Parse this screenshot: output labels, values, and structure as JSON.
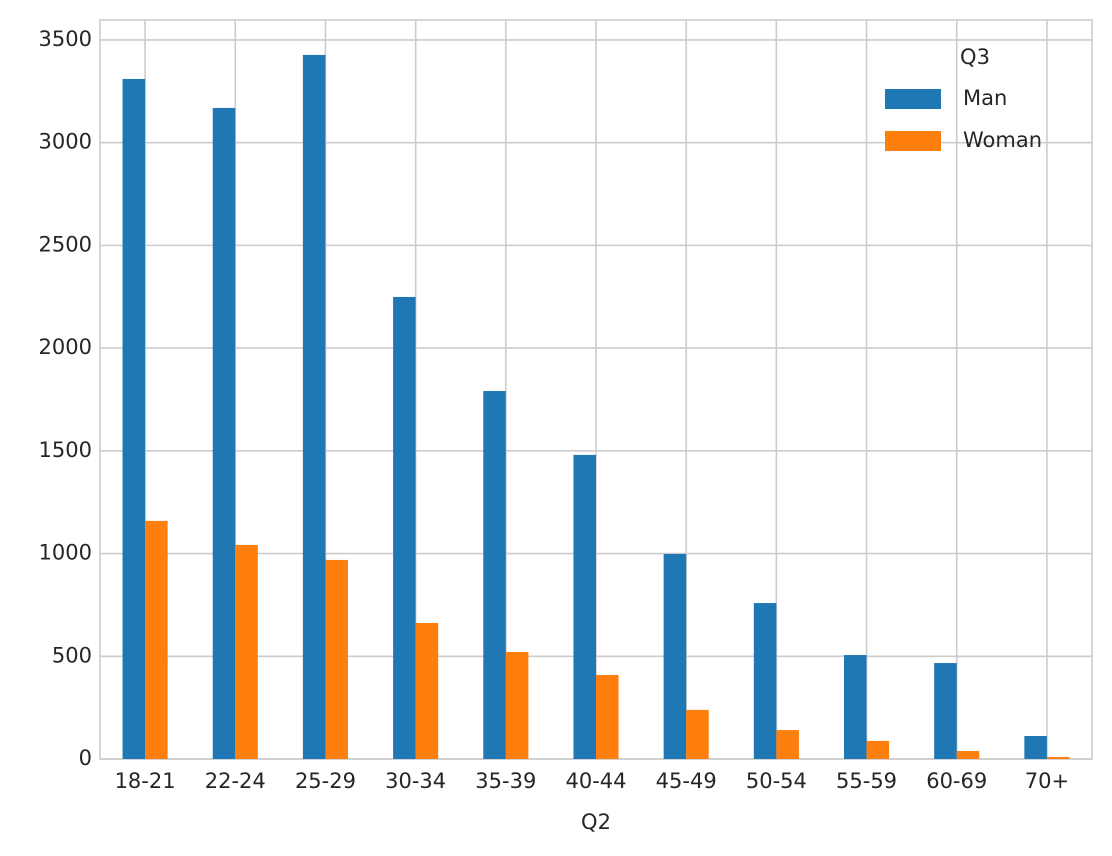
{
  "chart_data": {
    "type": "bar",
    "x_label": "Q2",
    "legend_title": "Q3",
    "legend_position": "upper right",
    "grid": true,
    "categories": [
      "18-21",
      "22-24",
      "25-29",
      "30-34",
      "35-39",
      "40-44",
      "45-49",
      "50-54",
      "55-59",
      "60-69",
      "70+"
    ],
    "series": [
      {
        "name": "Man",
        "color": "#1f77b4",
        "values": [
          3310,
          3169,
          3427,
          2249,
          1791,
          1480,
          998,
          759,
          506,
          467,
          112
        ]
      },
      {
        "name": "Woman",
        "color": "#ff7f0e",
        "values": [
          1159,
          1042,
          969,
          662,
          521,
          409,
          239,
          141,
          88,
          39,
          10
        ]
      }
    ],
    "ylim": [
      0,
      3597
    ],
    "yticks": [
      0,
      500,
      1000,
      1500,
      2000,
      2500,
      3000,
      3500
    ]
  }
}
